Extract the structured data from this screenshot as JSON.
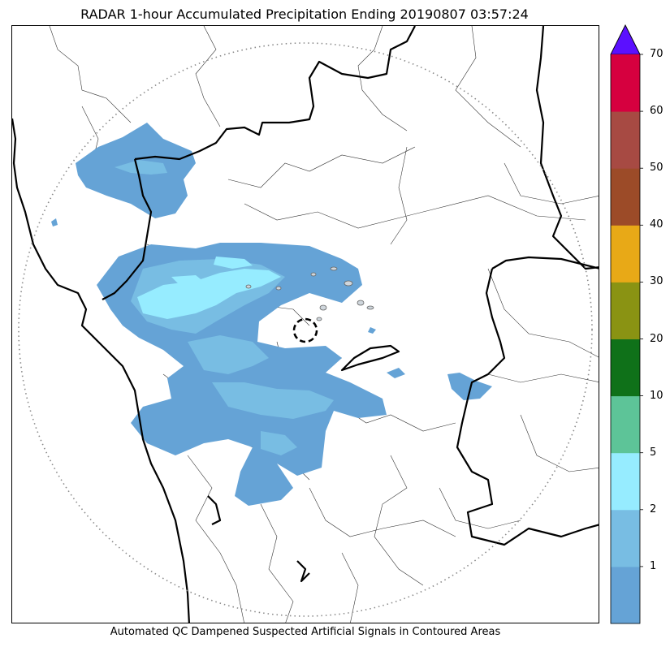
{
  "title": "RADAR 1-hour Accumulated Precipitation Ending 20190807 03:57:24",
  "footnote": "Automated QC Dampened Suspected Artificial Signals in Contoured Areas",
  "colorbar": {
    "ticks": [
      "1",
      "2",
      "5",
      "10",
      "20",
      "30",
      "40",
      "50",
      "60",
      "70"
    ],
    "levels": [
      0,
      1,
      2,
      5,
      10,
      20,
      30,
      40,
      50,
      60,
      70
    ],
    "colors": [
      "#65a3d6",
      "#78bde3",
      "#96ecff",
      "#5dc498",
      "#0f7119",
      "#8a9313",
      "#e8a917",
      "#9c4b28",
      "#a74a43",
      "#d6003f"
    ],
    "extend_color": "#5b10ff"
  },
  "map": {
    "precip_colors": {
      "light": "#65a3d6",
      "medium": "#78bde3",
      "heavy": "#96ecff"
    },
    "range_ring_color": "#8a8a8a",
    "boundary_color": "#000000"
  }
}
